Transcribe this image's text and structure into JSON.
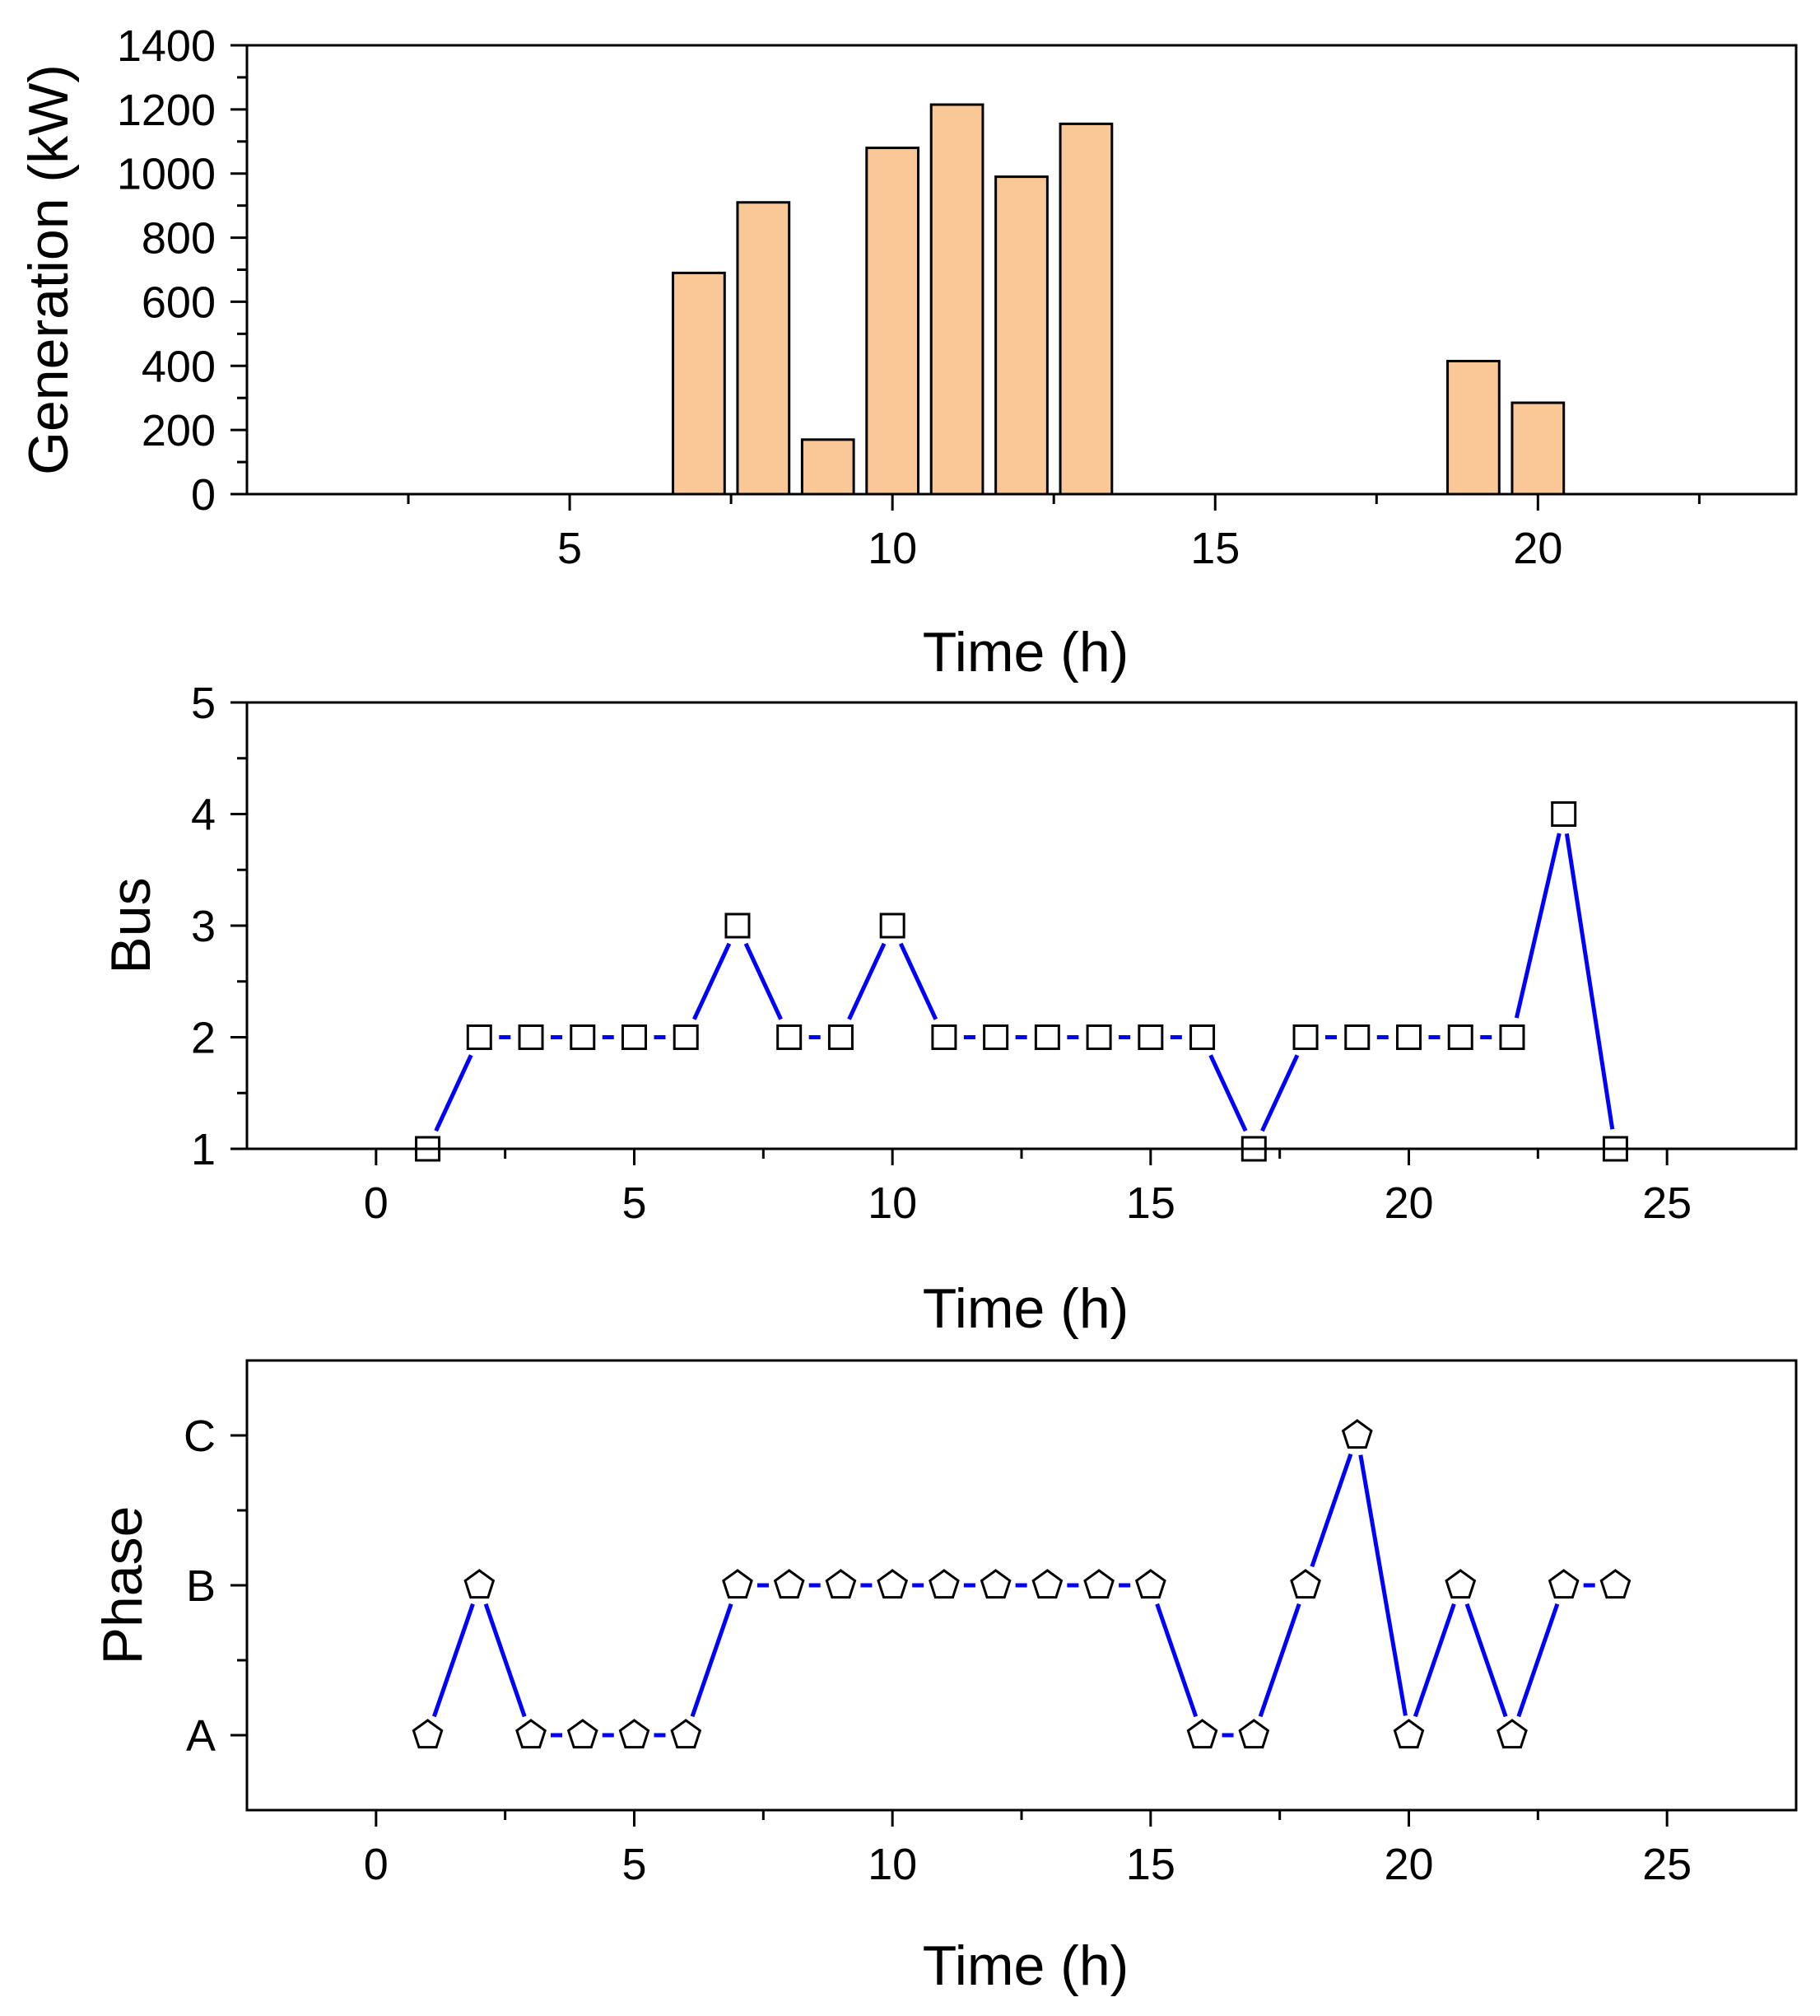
{
  "chart_data": [
    {
      "type": "bar",
      "xlabel": "Time (h)",
      "ylabel": "Generation (kW)",
      "xlim": [
        0,
        24
      ],
      "ylim": [
        0,
        1400
      ],
      "xticks": [
        5,
        10,
        15,
        20
      ],
      "yticks": [
        0,
        200,
        400,
        600,
        800,
        1000,
        1200,
        1400
      ],
      "bar_color": "#f9c896",
      "x": [
        7,
        8,
        9,
        10,
        11,
        12,
        13,
        19,
        20
      ],
      "values": [
        690,
        910,
        170,
        1080,
        1215,
        990,
        1155,
        415,
        285
      ]
    },
    {
      "type": "line",
      "xlabel": "Time (h)",
      "ylabel": "Bus",
      "xlim": [
        -2.5,
        27.5
      ],
      "ylim": [
        1,
        5
      ],
      "xticks": [
        0,
        5,
        10,
        15,
        20,
        25
      ],
      "yticks": [
        1,
        2,
        3,
        4,
        5
      ],
      "line_color": "#0000ff",
      "marker": "square",
      "x": [
        1,
        2,
        3,
        4,
        5,
        6,
        7,
        8,
        9,
        10,
        11,
        12,
        13,
        14,
        15,
        16,
        17,
        18,
        19,
        20,
        21,
        22,
        23,
        24
      ],
      "values": [
        1,
        2,
        2,
        2,
        2,
        2,
        3,
        2,
        2,
        3,
        2,
        2,
        2,
        2,
        2,
        2,
        1,
        2,
        2,
        2,
        2,
        2,
        4,
        1
      ]
    },
    {
      "type": "line",
      "xlabel": "Time (h)",
      "ylabel": "Phase",
      "xlim": [
        -2.5,
        27.5
      ],
      "ylim": [
        0.5,
        3.5
      ],
      "xticks": [
        0,
        5,
        10,
        15,
        20,
        25
      ],
      "yticks": [
        1,
        2,
        3
      ],
      "ytick_labels": [
        "A",
        "B",
        "C"
      ],
      "line_color": "#0000ff",
      "marker": "pentagon",
      "x": [
        1,
        2,
        3,
        4,
        5,
        6,
        7,
        8,
        9,
        10,
        11,
        12,
        13,
        14,
        15,
        16,
        17,
        18,
        19,
        20,
        21,
        22,
        23,
        24
      ],
      "values": [
        1,
        2,
        1,
        1,
        1,
        1,
        2,
        2,
        2,
        2,
        2,
        2,
        2,
        2,
        2,
        1,
        1,
        2,
        3,
        1,
        2,
        1,
        2,
        2
      ]
    }
  ]
}
